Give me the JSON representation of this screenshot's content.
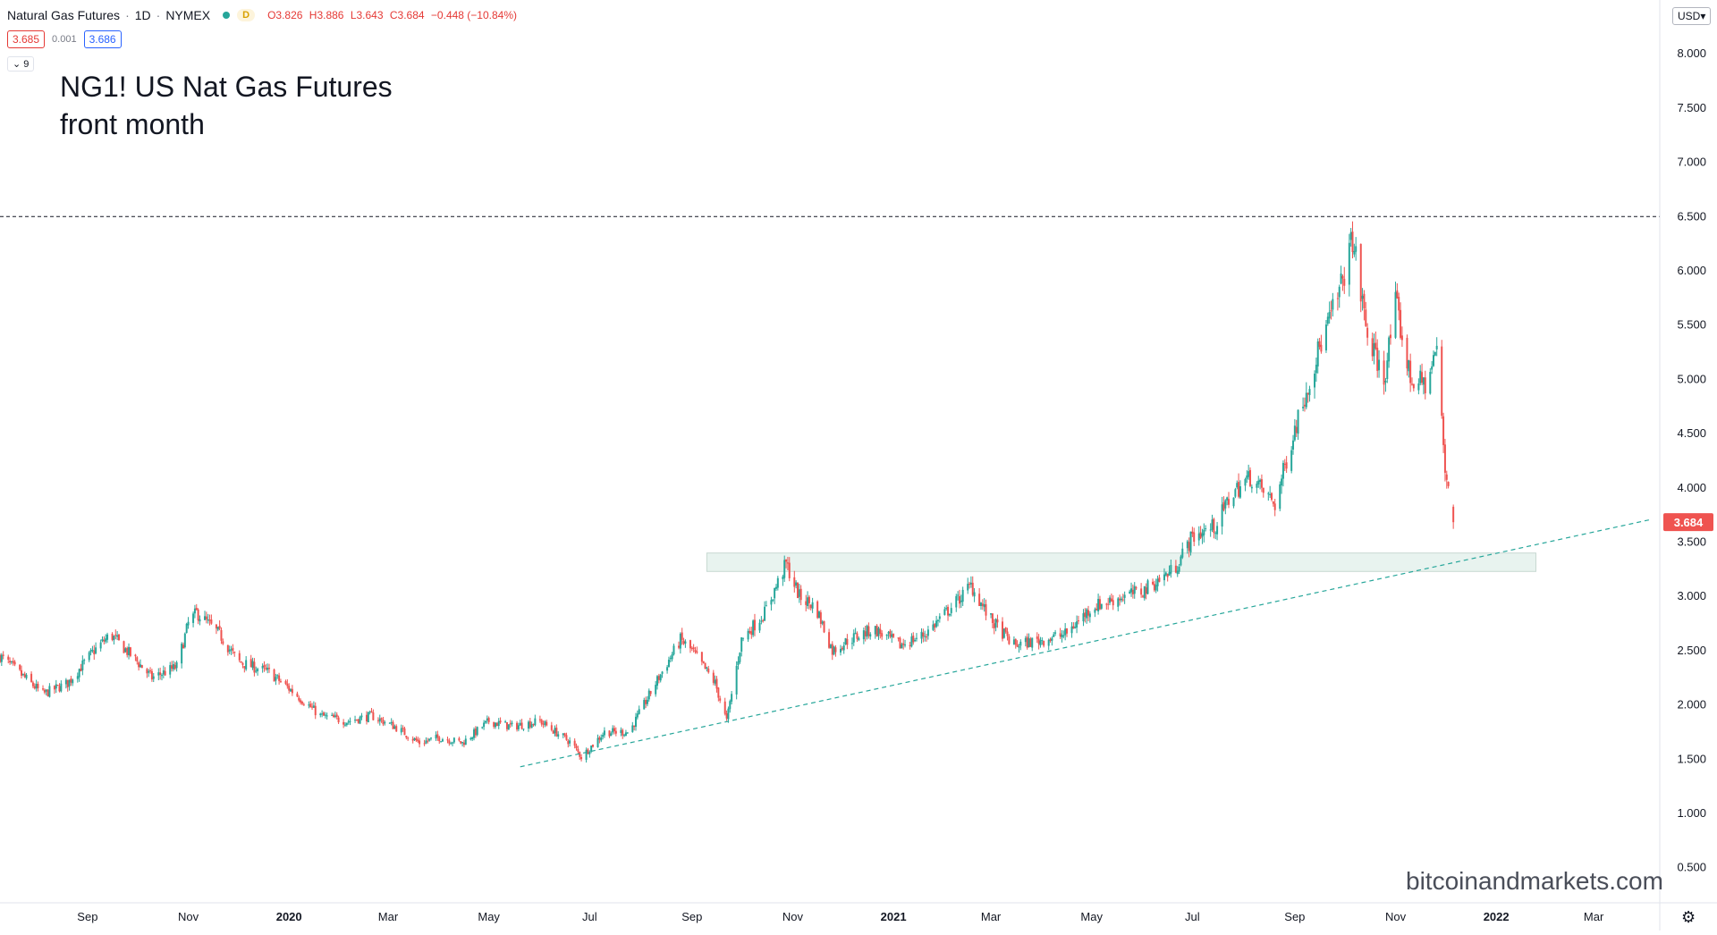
{
  "header": {
    "symbol_name": "Natural Gas Futures",
    "interval": "1D",
    "exchange": "NYMEX",
    "badge": "D",
    "open": "O3.826",
    "high": "H3.886",
    "low": "L3.643",
    "close": "C3.684",
    "change": "−0.448 (−10.84%)",
    "bid": "3.685",
    "spread": "0.001",
    "ask": "3.686",
    "indicators_count": "9",
    "currency": "USD"
  },
  "annotation_text": [
    "NG1! US Nat Gas Futures",
    "front month"
  ],
  "watermark": "bitcoinandmarkets.com",
  "colors": {
    "up": "#26a69a",
    "down": "#ef5350",
    "trendline": "#26a69a",
    "resistance_zone": "#e8f3ef",
    "price_label": "#ef5350",
    "status_dot": "#26a69a"
  },
  "chart_data": {
    "type": "candlestick",
    "y_ticks": [
      "8.000",
      "7.500",
      "7.000",
      "6.500",
      "6.000",
      "5.500",
      "5.000",
      "4.500",
      "4.000",
      "3.500",
      "3.000",
      "2.500",
      "2.000",
      "1.500",
      "1.000",
      "0.500"
    ],
    "x_ticks": [
      {
        "label": "Sep",
        "date": "2019-09-01",
        "bold": false
      },
      {
        "label": "Nov",
        "date": "2019-11-01",
        "bold": false
      },
      {
        "label": "2020",
        "date": "2020-01-01",
        "bold": true
      },
      {
        "label": "Mar",
        "date": "2020-03-01",
        "bold": false
      },
      {
        "label": "May",
        "date": "2020-05-01",
        "bold": false
      },
      {
        "label": "Jul",
        "date": "2020-07-01",
        "bold": false
      },
      {
        "label": "Sep",
        "date": "2020-09-01",
        "bold": false
      },
      {
        "label": "Nov",
        "date": "2020-11-01",
        "bold": false
      },
      {
        "label": "2021",
        "date": "2021-01-01",
        "bold": true
      },
      {
        "label": "Mar",
        "date": "2021-03-01",
        "bold": false
      },
      {
        "label": "May",
        "date": "2021-05-01",
        "bold": false
      },
      {
        "label": "Jul",
        "date": "2021-07-01",
        "bold": false
      },
      {
        "label": "Sep",
        "date": "2021-09-01",
        "bold": false
      },
      {
        "label": "Nov",
        "date": "2021-11-01",
        "bold": false
      },
      {
        "label": "2022",
        "date": "2022-01-01",
        "bold": true
      },
      {
        "label": "Mar",
        "date": "2022-03-01",
        "bold": false
      }
    ],
    "x_range": [
      "2019-07-10",
      "2022-04-10"
    ],
    "y_range": [
      0.3,
      8.15
    ],
    "last_price": "3.684",
    "horizontal_line": 6.5,
    "resistance_zone": {
      "x_start": "2020-09-10",
      "x_end": "2022-01-25",
      "y_low": 3.23,
      "y_high": 3.4
    },
    "trendline": {
      "from": {
        "date": "2020-05-20",
        "price": 1.43
      },
      "to": {
        "date": "2022-04-05",
        "price": 3.71
      }
    },
    "close_path": [
      [
        "2019-07-10",
        2.45
      ],
      [
        "2019-07-25",
        2.25
      ],
      [
        "2019-08-05",
        2.1
      ],
      [
        "2019-08-20",
        2.2
      ],
      [
        "2019-09-05",
        2.5
      ],
      [
        "2019-09-15",
        2.65
      ],
      [
        "2019-10-01",
        2.4
      ],
      [
        "2019-10-10",
        2.25
      ],
      [
        "2019-10-25",
        2.35
      ],
      [
        "2019-11-01",
        2.75
      ],
      [
        "2019-11-06",
        2.85
      ],
      [
        "2019-11-20",
        2.65
      ],
      [
        "2019-12-01",
        2.4
      ],
      [
        "2019-12-20",
        2.3
      ],
      [
        "2020-01-05",
        2.1
      ],
      [
        "2020-01-20",
        1.9
      ],
      [
        "2020-02-05",
        1.85
      ],
      [
        "2020-02-20",
        1.9
      ],
      [
        "2020-03-05",
        1.8
      ],
      [
        "2020-03-20",
        1.65
      ],
      [
        "2020-04-01",
        1.7
      ],
      [
        "2020-04-15",
        1.65
      ],
      [
        "2020-05-01",
        1.85
      ],
      [
        "2020-05-15",
        1.8
      ],
      [
        "2020-06-01",
        1.85
      ],
      [
        "2020-06-20",
        1.65
      ],
      [
        "2020-06-26",
        1.52
      ],
      [
        "2020-07-10",
        1.75
      ],
      [
        "2020-07-25",
        1.75
      ],
      [
        "2020-08-10",
        2.2
      ],
      [
        "2020-08-25",
        2.6
      ],
      [
        "2020-09-01",
        2.5
      ],
      [
        "2020-09-15",
        2.2
      ],
      [
        "2020-09-22",
        1.85
      ],
      [
        "2020-10-01",
        2.6
      ],
      [
        "2020-10-15",
        2.85
      ],
      [
        "2020-10-28",
        3.3
      ],
      [
        "2020-11-05",
        3.0
      ],
      [
        "2020-11-15",
        2.9
      ],
      [
        "2020-11-25",
        2.5
      ],
      [
        "2020-12-05",
        2.6
      ],
      [
        "2020-12-20",
        2.7
      ],
      [
        "2021-01-05",
        2.55
      ],
      [
        "2021-01-20",
        2.65
      ],
      [
        "2021-02-05",
        2.9
      ],
      [
        "2021-02-17",
        3.1
      ],
      [
        "2021-02-28",
        2.8
      ],
      [
        "2021-03-15",
        2.55
      ],
      [
        "2021-04-01",
        2.6
      ],
      [
        "2021-04-15",
        2.65
      ],
      [
        "2021-05-01",
        2.9
      ],
      [
        "2021-05-20",
        3.0
      ],
      [
        "2021-06-01",
        3.05
      ],
      [
        "2021-06-20",
        3.25
      ],
      [
        "2021-07-01",
        3.55
      ],
      [
        "2021-07-15",
        3.65
      ],
      [
        "2021-07-25",
        3.95
      ],
      [
        "2021-08-05",
        4.1
      ],
      [
        "2021-08-20",
        3.85
      ],
      [
        "2021-09-01",
        4.55
      ],
      [
        "2021-09-15",
        5.25
      ],
      [
        "2021-09-28",
        5.8
      ],
      [
        "2021-10-06",
        6.3
      ],
      [
        "2021-10-15",
        5.4
      ],
      [
        "2021-10-25",
        5.0
      ],
      [
        "2021-11-01",
        5.7
      ],
      [
        "2021-11-10",
        5.0
      ],
      [
        "2021-11-20",
        4.95
      ],
      [
        "2021-11-26",
        5.3
      ],
      [
        "2021-12-01",
        4.15
      ],
      [
        "2021-12-03",
        4.05
      ],
      [
        "2021-12-06",
        3.684
      ]
    ]
  }
}
